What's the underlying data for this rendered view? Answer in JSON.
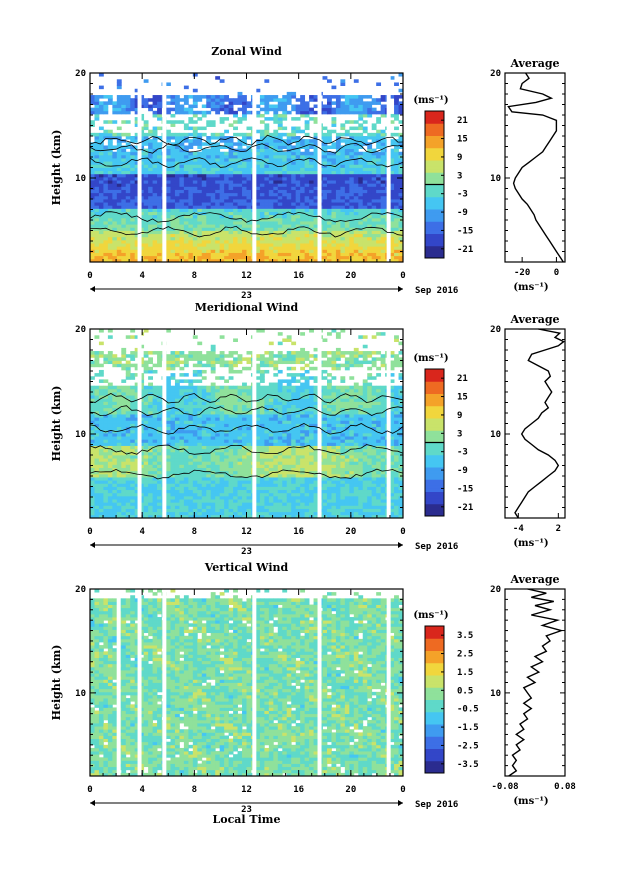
{
  "chart_data": [
    {
      "type": "heatmap",
      "title": "Zonal Wind",
      "ylabel": "Height (km)",
      "ylim": [
        2,
        20
      ],
      "xlim": [
        0,
        24
      ],
      "x_ticks": [
        "0",
        "4",
        "8",
        "12",
        "16",
        "20",
        "0"
      ],
      "y_ticks": [
        "10",
        "20"
      ],
      "date_tick": "23",
      "date_label": "Sep 2016",
      "colorbar": {
        "unit": "(ms⁻¹)",
        "min": -24,
        "max": 24,
        "ticks": [
          "21",
          "15",
          "9",
          "3",
          "-3",
          "-9",
          "-15",
          "-21"
        ],
        "zero_line": true
      },
      "profile": {
        "title": "Average",
        "xlim": [
          -30,
          5
        ],
        "x_ticks": [
          "-20",
          "0"
        ],
        "xlabel": "(ms⁻¹)",
        "y_ticks": [
          "10",
          "20"
        ],
        "points": [
          [
            -18,
            20
          ],
          [
            -16,
            19.5
          ],
          [
            -20,
            19
          ],
          [
            -21,
            18.5
          ],
          [
            -8,
            18
          ],
          [
            -3,
            17.6
          ],
          [
            -12,
            17.2
          ],
          [
            -28,
            16.8
          ],
          [
            -26,
            16.3
          ],
          [
            -8,
            16
          ],
          [
            0,
            15.5
          ],
          [
            0,
            14.5
          ],
          [
            -2,
            14
          ],
          [
            -4,
            13.5
          ],
          [
            -6,
            13
          ],
          [
            -8,
            12.5
          ],
          [
            -12,
            12
          ],
          [
            -16,
            11.5
          ],
          [
            -20,
            11
          ],
          [
            -22,
            10.5
          ],
          [
            -24,
            10
          ],
          [
            -25,
            9.5
          ],
          [
            -24,
            9
          ],
          [
            -22,
            8.5
          ],
          [
            -20,
            8
          ],
          [
            -17,
            7.5
          ],
          [
            -15,
            7
          ],
          [
            -13,
            6.5
          ],
          [
            -12,
            6
          ],
          [
            -10,
            5.5
          ],
          [
            -8,
            5
          ],
          [
            -6,
            4.5
          ],
          [
            -4,
            4
          ],
          [
            -2,
            3.5
          ],
          [
            0,
            3
          ],
          [
            2,
            2.5
          ],
          [
            4,
            2
          ]
        ]
      },
      "gaps_hours": [
        3.8,
        5.7,
        12.6,
        17.6,
        22.9
      ]
    },
    {
      "type": "heatmap",
      "title": "Meridional Wind",
      "ylabel": "Height (km)",
      "ylim": [
        2,
        20
      ],
      "xlim": [
        0,
        24
      ],
      "x_ticks": [
        "0",
        "4",
        "8",
        "12",
        "16",
        "20",
        "0"
      ],
      "y_ticks": [
        "10",
        "20"
      ],
      "date_tick": "23",
      "date_label": "Sep 2016",
      "colorbar": {
        "unit": "(ms⁻¹)",
        "min": -24,
        "max": 24,
        "ticks": [
          "21",
          "15",
          "9",
          "3",
          "-3",
          "-9",
          "-15",
          "-21"
        ],
        "zero_line": true
      },
      "profile": {
        "title": "Average",
        "xlim": [
          -6,
          3
        ],
        "x_ticks": [
          "-4",
          "2"
        ],
        "xlabel": "(ms⁻¹)",
        "y_ticks": [
          "10",
          "20"
        ],
        "points": [
          [
            -1,
            20
          ],
          [
            2.2,
            19.6
          ],
          [
            1.5,
            19.2
          ],
          [
            2.8,
            18.8
          ],
          [
            2,
            18.4
          ],
          [
            0,
            18
          ],
          [
            -2,
            17.6
          ],
          [
            -2.5,
            17
          ],
          [
            -1,
            16.5
          ],
          [
            0.5,
            16
          ],
          [
            0.8,
            15.5
          ],
          [
            0,
            15
          ],
          [
            0.5,
            14.5
          ],
          [
            1,
            14
          ],
          [
            0.5,
            13.5
          ],
          [
            0,
            13
          ],
          [
            0.5,
            12.5
          ],
          [
            -0.5,
            12
          ],
          [
            -1,
            11.5
          ],
          [
            -2,
            11
          ],
          [
            -3,
            10.5
          ],
          [
            -3.5,
            10
          ],
          [
            -3,
            9.5
          ],
          [
            -2,
            9
          ],
          [
            -1,
            8.5
          ],
          [
            0.5,
            8
          ],
          [
            1.5,
            7.5
          ],
          [
            2,
            7
          ],
          [
            1.5,
            6.5
          ],
          [
            0.5,
            6
          ],
          [
            -0.5,
            5.5
          ],
          [
            -1.5,
            5
          ],
          [
            -2.5,
            4.5
          ],
          [
            -3,
            4
          ],
          [
            -3.5,
            3.5
          ],
          [
            -4,
            3
          ],
          [
            -4.5,
            2.5
          ],
          [
            -4,
            2
          ]
        ]
      },
      "gaps_hours": [
        3.8,
        5.7,
        12.6,
        17.6,
        22.9
      ]
    },
    {
      "type": "heatmap",
      "title": "Vertical Wind",
      "ylabel": "Height (km)",
      "xlabel": "Local Time",
      "ylim": [
        2,
        20
      ],
      "xlim": [
        0,
        24
      ],
      "x_ticks": [
        "0",
        "4",
        "8",
        "12",
        "16",
        "20",
        "0"
      ],
      "y_ticks": [
        "10",
        "20"
      ],
      "date_tick": "23",
      "date_label": "Sep 2016",
      "colorbar": {
        "unit": "(ms⁻¹)",
        "min": -4,
        "max": 4,
        "ticks": [
          "3.5",
          "2.5",
          "1.5",
          "0.5",
          "-0.5",
          "-1.5",
          "-2.5",
          "-3.5"
        ],
        "zero_line": false
      },
      "profile": {
        "title": "Average",
        "xlim": [
          -0.08,
          0.08
        ],
        "x_ticks": [
          "-0.08",
          "0.08"
        ],
        "xlabel": "(ms⁻¹)",
        "y_ticks": [
          "10",
          "20"
        ],
        "points": [
          [
            -0.02,
            20
          ],
          [
            0.03,
            19.6
          ],
          [
            -0.01,
            19.2
          ],
          [
            0.05,
            18.8
          ],
          [
            0.0,
            18.4
          ],
          [
            0.04,
            18
          ],
          [
            -0.01,
            17.5
          ],
          [
            0.06,
            17
          ],
          [
            0.02,
            16.5
          ],
          [
            0.07,
            16
          ],
          [
            0.03,
            15.5
          ],
          [
            0.04,
            15
          ],
          [
            0.02,
            14.5
          ],
          [
            0.03,
            14
          ],
          [
            0.0,
            13.5
          ],
          [
            0.02,
            13
          ],
          [
            -0.01,
            12.5
          ],
          [
            0.01,
            12
          ],
          [
            -0.02,
            11.5
          ],
          [
            0.0,
            11
          ],
          [
            -0.03,
            10.5
          ],
          [
            -0.02,
            10
          ],
          [
            -0.01,
            9.5
          ],
          [
            -0.03,
            9
          ],
          [
            -0.01,
            8.5
          ],
          [
            -0.03,
            8
          ],
          [
            -0.02,
            7.5
          ],
          [
            -0.04,
            7
          ],
          [
            -0.03,
            6.5
          ],
          [
            -0.05,
            6
          ],
          [
            -0.03,
            5.5
          ],
          [
            -0.05,
            5
          ],
          [
            -0.04,
            4.5
          ],
          [
            -0.06,
            4
          ],
          [
            -0.05,
            3.5
          ],
          [
            -0.06,
            3
          ],
          [
            -0.05,
            2.5
          ],
          [
            -0.07,
            2
          ]
        ]
      },
      "gaps_hours": [
        2.2,
        3.8,
        5.7,
        12.6,
        17.6,
        22.9
      ]
    }
  ]
}
